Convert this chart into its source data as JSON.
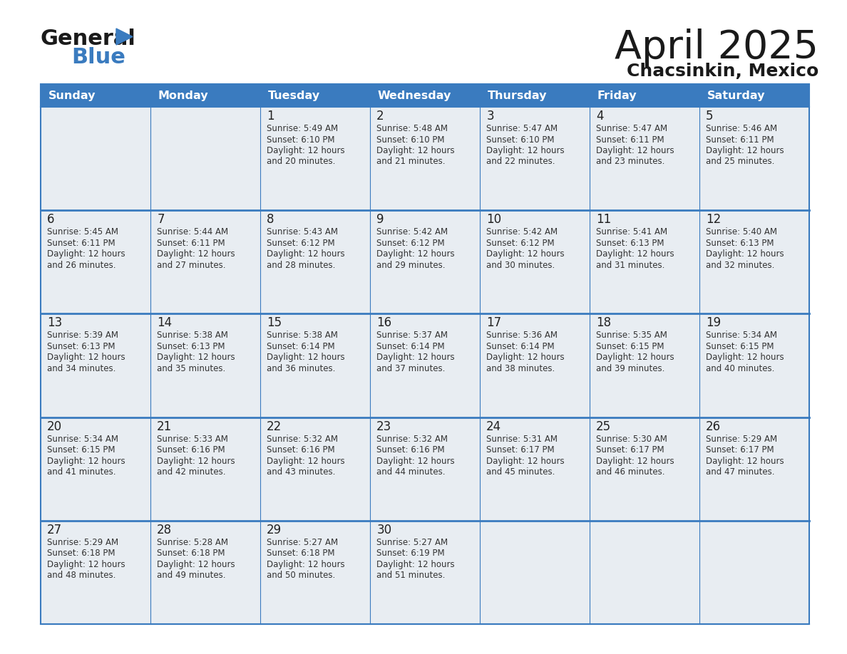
{
  "title": "April 2025",
  "subtitle": "Chacsinkin, Mexico",
  "days_of_week": [
    "Sunday",
    "Monday",
    "Tuesday",
    "Wednesday",
    "Thursday",
    "Friday",
    "Saturday"
  ],
  "header_bg": "#3a7bbf",
  "header_text": "#ffffff",
  "cell_bg_top": "#e8edf2",
  "cell_bg_bottom": "#ffffff",
  "grid_line_color": "#3a7bbf",
  "grid_line_inner": "#cccccc",
  "day_number_color": "#222222",
  "cell_text_color": "#333333",
  "title_color": "#1a1a1a",
  "subtitle_color": "#1a1a1a",
  "calendar": [
    [
      null,
      null,
      {
        "day": 1,
        "sunrise": "5:49 AM",
        "sunset": "6:10 PM",
        "daylight": "12 hours",
        "daylight2": "and 20 minutes."
      },
      {
        "day": 2,
        "sunrise": "5:48 AM",
        "sunset": "6:10 PM",
        "daylight": "12 hours",
        "daylight2": "and 21 minutes."
      },
      {
        "day": 3,
        "sunrise": "5:47 AM",
        "sunset": "6:10 PM",
        "daylight": "12 hours",
        "daylight2": "and 22 minutes."
      },
      {
        "day": 4,
        "sunrise": "5:47 AM",
        "sunset": "6:11 PM",
        "daylight": "12 hours",
        "daylight2": "and 23 minutes."
      },
      {
        "day": 5,
        "sunrise": "5:46 AM",
        "sunset": "6:11 PM",
        "daylight": "12 hours",
        "daylight2": "and 25 minutes."
      }
    ],
    [
      {
        "day": 6,
        "sunrise": "5:45 AM",
        "sunset": "6:11 PM",
        "daylight": "12 hours",
        "daylight2": "and 26 minutes."
      },
      {
        "day": 7,
        "sunrise": "5:44 AM",
        "sunset": "6:11 PM",
        "daylight": "12 hours",
        "daylight2": "and 27 minutes."
      },
      {
        "day": 8,
        "sunrise": "5:43 AM",
        "sunset": "6:12 PM",
        "daylight": "12 hours",
        "daylight2": "and 28 minutes."
      },
      {
        "day": 9,
        "sunrise": "5:42 AM",
        "sunset": "6:12 PM",
        "daylight": "12 hours",
        "daylight2": "and 29 minutes."
      },
      {
        "day": 10,
        "sunrise": "5:42 AM",
        "sunset": "6:12 PM",
        "daylight": "12 hours",
        "daylight2": "and 30 minutes."
      },
      {
        "day": 11,
        "sunrise": "5:41 AM",
        "sunset": "6:13 PM",
        "daylight": "12 hours",
        "daylight2": "and 31 minutes."
      },
      {
        "day": 12,
        "sunrise": "5:40 AM",
        "sunset": "6:13 PM",
        "daylight": "12 hours",
        "daylight2": "and 32 minutes."
      }
    ],
    [
      {
        "day": 13,
        "sunrise": "5:39 AM",
        "sunset": "6:13 PM",
        "daylight": "12 hours",
        "daylight2": "and 34 minutes."
      },
      {
        "day": 14,
        "sunrise": "5:38 AM",
        "sunset": "6:13 PM",
        "daylight": "12 hours",
        "daylight2": "and 35 minutes."
      },
      {
        "day": 15,
        "sunrise": "5:38 AM",
        "sunset": "6:14 PM",
        "daylight": "12 hours",
        "daylight2": "and 36 minutes."
      },
      {
        "day": 16,
        "sunrise": "5:37 AM",
        "sunset": "6:14 PM",
        "daylight": "12 hours",
        "daylight2": "and 37 minutes."
      },
      {
        "day": 17,
        "sunrise": "5:36 AM",
        "sunset": "6:14 PM",
        "daylight": "12 hours",
        "daylight2": "and 38 minutes."
      },
      {
        "day": 18,
        "sunrise": "5:35 AM",
        "sunset": "6:15 PM",
        "daylight": "12 hours",
        "daylight2": "and 39 minutes."
      },
      {
        "day": 19,
        "sunrise": "5:34 AM",
        "sunset": "6:15 PM",
        "daylight": "12 hours",
        "daylight2": "and 40 minutes."
      }
    ],
    [
      {
        "day": 20,
        "sunrise": "5:34 AM",
        "sunset": "6:15 PM",
        "daylight": "12 hours",
        "daylight2": "and 41 minutes."
      },
      {
        "day": 21,
        "sunrise": "5:33 AM",
        "sunset": "6:16 PM",
        "daylight": "12 hours",
        "daylight2": "and 42 minutes."
      },
      {
        "day": 22,
        "sunrise": "5:32 AM",
        "sunset": "6:16 PM",
        "daylight": "12 hours",
        "daylight2": "and 43 minutes."
      },
      {
        "day": 23,
        "sunrise": "5:32 AM",
        "sunset": "6:16 PM",
        "daylight": "12 hours",
        "daylight2": "and 44 minutes."
      },
      {
        "day": 24,
        "sunrise": "5:31 AM",
        "sunset": "6:17 PM",
        "daylight": "12 hours",
        "daylight2": "and 45 minutes."
      },
      {
        "day": 25,
        "sunrise": "5:30 AM",
        "sunset": "6:17 PM",
        "daylight": "12 hours",
        "daylight2": "and 46 minutes."
      },
      {
        "day": 26,
        "sunrise": "5:29 AM",
        "sunset": "6:17 PM",
        "daylight": "12 hours",
        "daylight2": "and 47 minutes."
      }
    ],
    [
      {
        "day": 27,
        "sunrise": "5:29 AM",
        "sunset": "6:18 PM",
        "daylight": "12 hours",
        "daylight2": "and 48 minutes."
      },
      {
        "day": 28,
        "sunrise": "5:28 AM",
        "sunset": "6:18 PM",
        "daylight": "12 hours",
        "daylight2": "and 49 minutes."
      },
      {
        "day": 29,
        "sunrise": "5:27 AM",
        "sunset": "6:18 PM",
        "daylight": "12 hours",
        "daylight2": "and 50 minutes."
      },
      {
        "day": 30,
        "sunrise": "5:27 AM",
        "sunset": "6:19 PM",
        "daylight": "12 hours",
        "daylight2": "and 51 minutes."
      },
      null,
      null,
      null
    ]
  ]
}
